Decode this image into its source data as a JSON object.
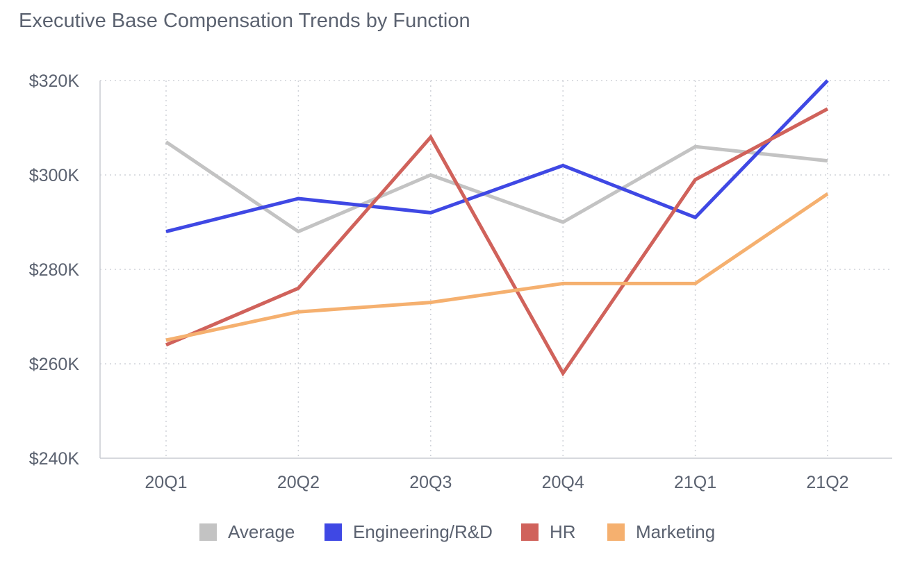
{
  "chart_data": {
    "type": "line",
    "title": "Executive Base Compensation Trends by Function",
    "categories": [
      "20Q1",
      "20Q2",
      "20Q3",
      "20Q4",
      "21Q1",
      "21Q2"
    ],
    "ylim": [
      240000,
      320000
    ],
    "yticks": [
      240000,
      260000,
      280000,
      300000,
      320000
    ],
    "ytick_labels": [
      "$240K",
      "$260K",
      "$280K",
      "$300K",
      "$320K"
    ],
    "grid": true,
    "legend_position": "bottom",
    "series": [
      {
        "name": "Average",
        "color": "#c3c3c3",
        "values": [
          307000,
          288000,
          300000,
          290000,
          306000,
          303000
        ]
      },
      {
        "name": "Engineering/R&D",
        "color": "#3f48e4",
        "values": [
          288000,
          295000,
          292000,
          302000,
          291000,
          320000
        ]
      },
      {
        "name": "HR",
        "color": "#d0625b",
        "values": [
          264000,
          276000,
          308000,
          258000,
          299000,
          314000
        ]
      },
      {
        "name": "Marketing",
        "color": "#f5b06f",
        "values": [
          265000,
          271000,
          273000,
          277000,
          277000,
          296000
        ]
      }
    ]
  }
}
